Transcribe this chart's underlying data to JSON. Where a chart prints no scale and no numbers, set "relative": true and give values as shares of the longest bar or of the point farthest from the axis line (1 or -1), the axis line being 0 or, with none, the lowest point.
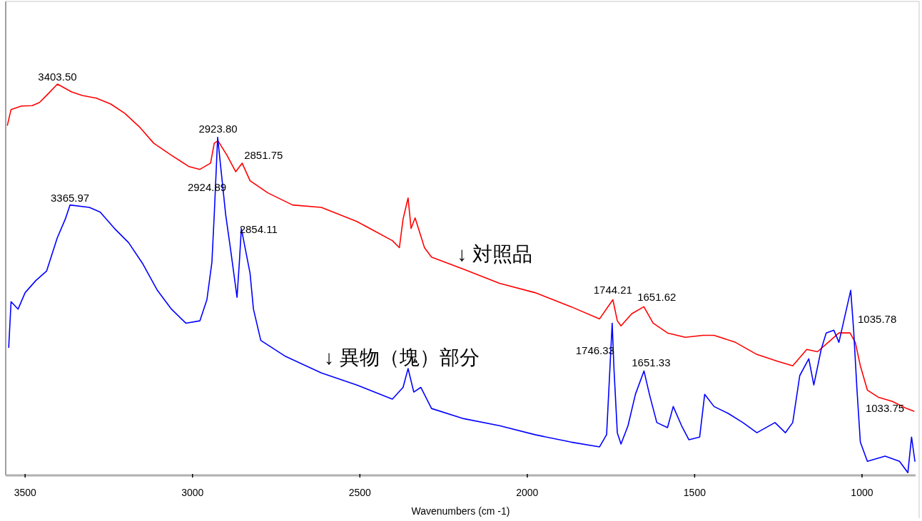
{
  "chart_data": {
    "type": "line",
    "relative": true,
    "xlabel": "Wavenumbers (cm -1)",
    "xlim": [
      3558,
      840
    ],
    "xticks": [
      3500,
      3000,
      2500,
      2000,
      1500,
      1000
    ],
    "series": [
      {
        "name": "↓ 対照品",
        "color": "#ff0000",
        "x": [
          3553,
          3542,
          3511,
          3479,
          3457,
          3436,
          3403.5,
          3361,
          3329,
          3287,
          3244,
          3202,
          3159,
          3116,
          3063,
          3010,
          2978,
          2946,
          2935,
          2923.8,
          2897,
          2871,
          2851.75,
          2828,
          2775,
          2701,
          2615,
          2509,
          2403,
          2382,
          2371,
          2356,
          2347,
          2335,
          2307,
          2286,
          2190,
          2083,
          1977,
          1869,
          1784,
          1744.21,
          1731,
          1720,
          1688,
          1651.62,
          1624,
          1581,
          1528,
          1475,
          1442,
          1378,
          1314,
          1250,
          1207,
          1165,
          1133,
          1101,
          1069,
          1035.78,
          1020,
          1005,
          984,
          952,
          909,
          867,
          845
        ],
        "values": [
          0.895,
          0.935,
          0.944,
          0.945,
          0.953,
          0.971,
          1,
          0.98,
          0.971,
          0.964,
          0.949,
          0.925,
          0.891,
          0.849,
          0.818,
          0.789,
          0.782,
          0.798,
          0.849,
          0.855,
          0.818,
          0.776,
          0.798,
          0.753,
          0.722,
          0.691,
          0.685,
          0.649,
          0.6,
          0.582,
          0.655,
          0.709,
          0.631,
          0.658,
          0.582,
          0.558,
          0.527,
          0.491,
          0.467,
          0.431,
          0.4,
          0.449,
          0.395,
          0.382,
          0.413,
          0.431,
          0.389,
          0.364,
          0.353,
          0.358,
          0.358,
          0.34,
          0.309,
          0.291,
          0.28,
          0.322,
          0.316,
          0.34,
          0.364,
          0.364,
          0.34,
          0.28,
          0.218,
          0.2,
          0.189,
          0.171,
          0.164
        ]
      },
      {
        "name": "↓ 異物（塊）部分",
        "color": "#0000ff",
        "x": [
          3549,
          3542,
          3521,
          3500,
          3468,
          3436,
          3404,
          3380,
          3365.97,
          3308,
          3276,
          3233,
          3191,
          3148,
          3105,
          3063,
          3020,
          2978,
          2957,
          2942,
          2935,
          2924.89,
          2901,
          2886,
          2867,
          2860,
          2854.11,
          2828,
          2818,
          2796,
          2722,
          2615,
          2509,
          2403,
          2371,
          2356,
          2339,
          2318,
          2286,
          2190,
          2083,
          1977,
          1869,
          1784,
          1763,
          1746.33,
          1741,
          1731,
          1720,
          1699,
          1677,
          1651.33,
          1635,
          1613,
          1581,
          1564,
          1539,
          1517,
          1485,
          1470,
          1442,
          1399,
          1356,
          1314,
          1260,
          1229,
          1207,
          1186,
          1159,
          1144,
          1122,
          1107,
          1084,
          1069,
          1033.75,
          1025,
          1015,
          1005,
          984,
          931,
          888,
          863,
          852,
          842
        ],
        "values": [
          0.327,
          0.444,
          0.425,
          0.467,
          0.498,
          0.522,
          0.607,
          0.655,
          0.691,
          0.685,
          0.673,
          0.631,
          0.595,
          0.54,
          0.473,
          0.425,
          0.389,
          0.395,
          0.449,
          0.545,
          0.667,
          0.864,
          0.667,
          0.576,
          0.455,
          0.545,
          0.631,
          0.516,
          0.425,
          0.345,
          0.304,
          0.262,
          0.231,
          0.195,
          0.225,
          0.273,
          0.213,
          0.225,
          0.171,
          0.145,
          0.127,
          0.104,
          0.085,
          0.073,
          0.104,
          0.389,
          0.273,
          0.109,
          0.08,
          0.127,
          0.207,
          0.267,
          0.207,
          0.135,
          0.122,
          0.176,
          0.127,
          0.091,
          0.098,
          0.207,
          0.176,
          0.158,
          0.135,
          0.109,
          0.135,
          0.109,
          0.135,
          0.255,
          0.298,
          0.231,
          0.322,
          0.364,
          0.371,
          0.34,
          0.473,
          0.371,
          0.218,
          0.085,
          0.036,
          0.049,
          0.036,
          0.007,
          0.098,
          0.036
        ]
      }
    ],
    "annotations": [
      {
        "text": "3403.50",
        "x": 3403.5,
        "y": 1
      },
      {
        "text": "2923.80",
        "x": 2923.8,
        "y": 0.855
      },
      {
        "text": "2851.75",
        "x": 2851.75,
        "y": 0.798
      },
      "2924.89",
      {
        "text": "3365.97",
        "x": 3365.97,
        "y": 0.691
      },
      {
        "text": "2854.11",
        "x": 2854.11,
        "y": 0.631
      },
      {
        "text": "1744.21",
        "x": 1744.21,
        "y": 0.449
      },
      {
        "text": "1651.62",
        "x": 1651.62,
        "y": 0.431
      },
      {
        "text": "1746.33",
        "x": 1746.33,
        "y": 0.389
      },
      {
        "text": "1651.33",
        "x": 1651.33,
        "y": 0.267
      },
      {
        "text": "1035.78",
        "x": 1035.78,
        "y": 0.364
      },
      "1033.75"
    ]
  }
}
